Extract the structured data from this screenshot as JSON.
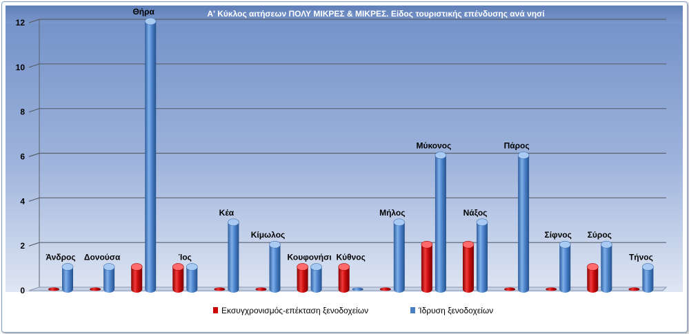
{
  "chart_data": {
    "type": "bar",
    "title": "Α' Κύκλος  αιτήσεων ΠΟΛΥ ΜΙΚΡΕΣ & ΜΙΚΡΕΣ. Είδος τουριστικής επένδυσης ανά νησί",
    "categories": [
      "Άνδρος",
      "Δονούσα",
      "Θήρα",
      "Ίος",
      "Κέα",
      "Κίμωλος",
      "Κουφονήσι",
      "Κύθνος",
      "Μήλος",
      "Μύκονος",
      "Νάξος",
      "Πάρος",
      "Σίφνος",
      "Σύρος",
      "Τήνος"
    ],
    "series": [
      {
        "name": "Εκσυγχρονισμός-επέκταση ξενοδοχείων",
        "color": "#cc0000",
        "values": [
          0,
          0,
          1,
          1,
          0,
          0,
          1,
          1,
          0,
          2,
          2,
          0,
          0,
          1,
          0
        ]
      },
      {
        "name": "Ίδρυση ξενοδοχείων",
        "color": "#4a7fc1",
        "values": [
          1,
          1,
          12,
          1,
          3,
          2,
          1,
          0,
          3,
          6,
          3,
          6,
          2,
          2,
          1
        ]
      }
    ],
    "yticks": [
      "0",
      "2",
      "4",
      "6",
      "8",
      "10",
      "12"
    ],
    "ylim": [
      0,
      12
    ],
    "grid": true,
    "legend": "bottom"
  }
}
